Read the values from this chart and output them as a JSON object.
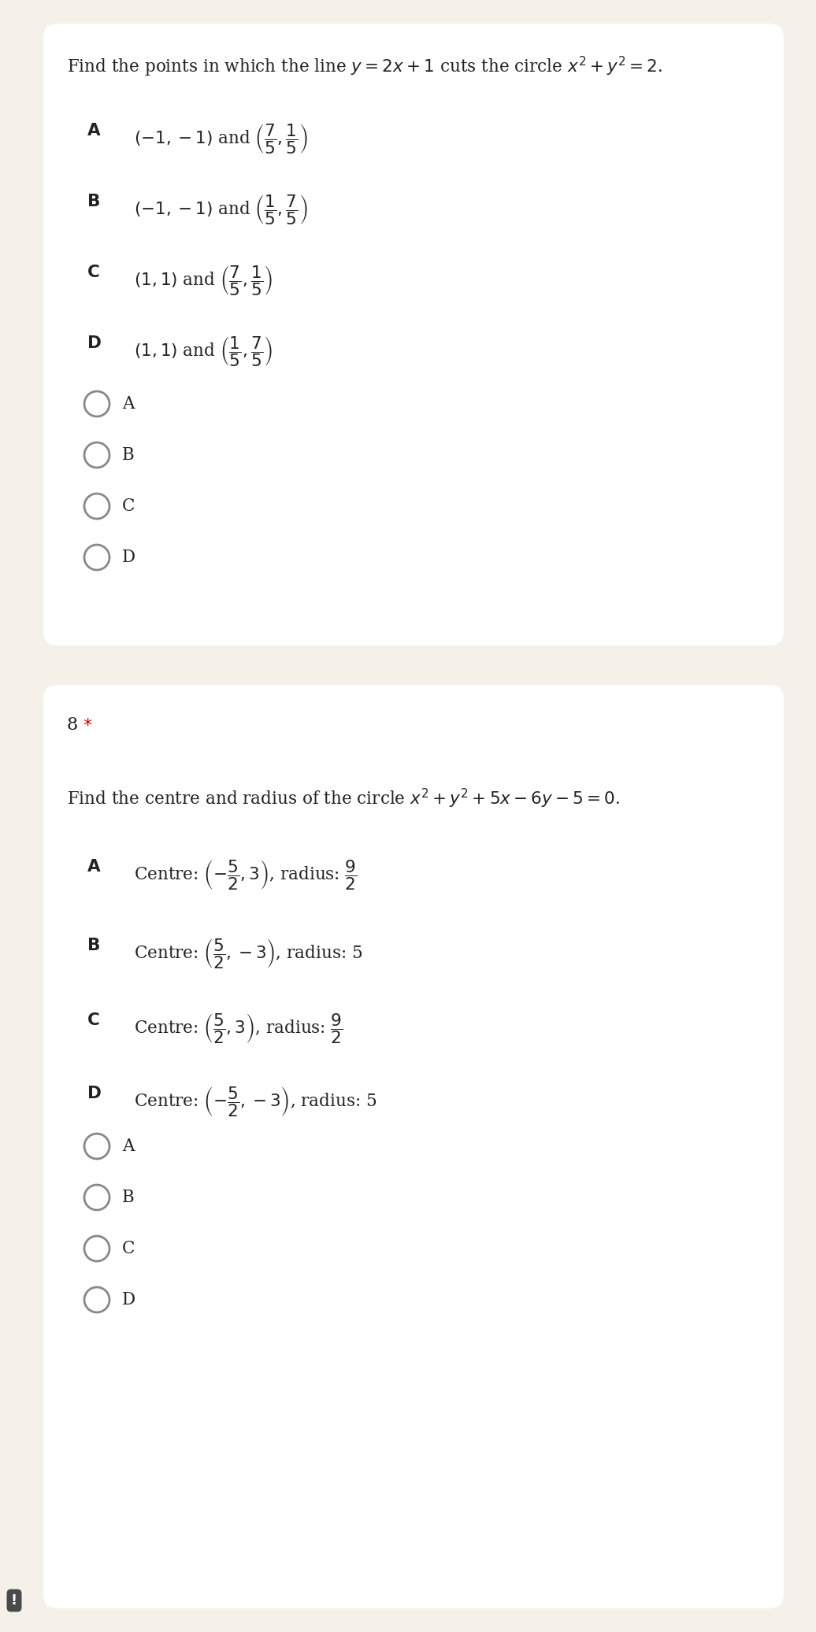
{
  "bg_color": "#f5f0e8",
  "card_color": "#ffffff",
  "text_color": "#2d2d2d",
  "q1": {
    "question": "Find the points in which the line $y=2x+1$ cuts the circle $x^2+y^2=2$.",
    "options": [
      [
        "A",
        "$(-1,-1)$ and $\\left(\\dfrac{7}{5},\\dfrac{1}{5}\\right)$"
      ],
      [
        "B",
        "$(-1,-1)$ and $\\left(\\dfrac{1}{5},\\dfrac{7}{5}\\right)$"
      ],
      [
        "C",
        "$(1,1)$ and $\\left(\\dfrac{7}{5},\\dfrac{1}{5}\\right)$"
      ],
      [
        "D",
        "$(1,1)$ and $\\left(\\dfrac{1}{5},\\dfrac{7}{5}\\right)$"
      ]
    ],
    "radio_options": [
      "A",
      "B",
      "C",
      "D"
    ]
  },
  "q2": {
    "number": "8",
    "question": "Find the centre and radius of the circle $x^2+y^2+5x-6y-5=0$.",
    "options": [
      [
        "A",
        "Centre: $\\left(-\\dfrac{5}{2},3\\right)$, radius: $\\dfrac{9}{2}$"
      ],
      [
        "B",
        "Centre: $\\left(\\dfrac{5}{2},-3\\right)$, radius: 5"
      ],
      [
        "C",
        "Centre: $\\left(\\dfrac{5}{2},3\\right)$, radius: $\\dfrac{9}{2}$"
      ],
      [
        "D",
        "Centre: $\\left(-\\dfrac{5}{2},-3\\right)$, radius: 5"
      ]
    ],
    "radio_options": [
      "A",
      "B",
      "C",
      "D"
    ]
  },
  "figsize": [
    10.36,
    20.73
  ],
  "dpi": 100
}
